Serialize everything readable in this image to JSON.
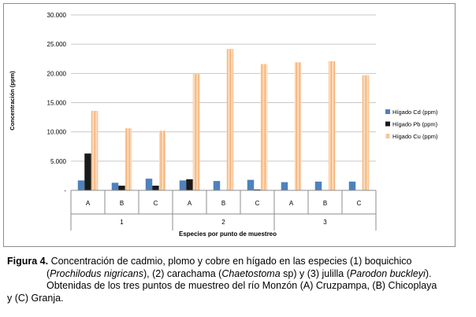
{
  "chart_data": {
    "type": "bar",
    "ylabel": "Concentración (ppm)",
    "xlabel": "Especies por punto de muestreo",
    "ylim": [
      0,
      30000
    ],
    "yticks": [
      "-",
      "5.000",
      "10.000",
      "15.000",
      "20.000",
      "25.000",
      "30.000"
    ],
    "grid": true,
    "legend_position": "right",
    "groups": [
      {
        "label": "1",
        "categories": [
          "A",
          "B",
          "C"
        ]
      },
      {
        "label": "2",
        "categories": [
          "A",
          "B",
          "C"
        ]
      },
      {
        "label": "3",
        "categories": [
          "A",
          "B",
          "C"
        ]
      }
    ],
    "series": [
      {
        "name": "Hígado Cd (ppm)",
        "color": "#4f81bd",
        "pattern": "solid",
        "values": [
          1700,
          1300,
          2000,
          1700,
          1600,
          1800,
          1400,
          1500,
          1500
        ]
      },
      {
        "name": "Hígado Pb (ppm)",
        "color": "#1a1a1a",
        "pattern": "solid",
        "values": [
          6300,
          800,
          800,
          1900,
          0,
          150,
          0,
          0,
          0
        ]
      },
      {
        "name": "Hígado Cu (ppm)",
        "color": "#fac090",
        "pattern": "dashed",
        "values": [
          13600,
          10600,
          10200,
          19900,
          24200,
          21600,
          21900,
          22100,
          19700
        ]
      }
    ]
  },
  "caption": {
    "label": "Figura 4.",
    "line1_text": " Concentración de cadmio, plomo y cobre en hígado en las especies (1) boquichico",
    "line2_open": "(",
    "line2_species1": "Prochilodus nigricans",
    "line2_mid1": "), (2) carachama (",
    "line2_species2": "Chaetostoma",
    "line2_mid2": " sp) y (3) julilla (",
    "line2_species3": "Parodon buckleyi",
    "line2_close": ").",
    "line3": "Obtenidas de los tres puntos de muestreo del río Monzón (A) Cruzpampa, (B) Chicoplaya",
    "line4": "y (C) Granja."
  }
}
